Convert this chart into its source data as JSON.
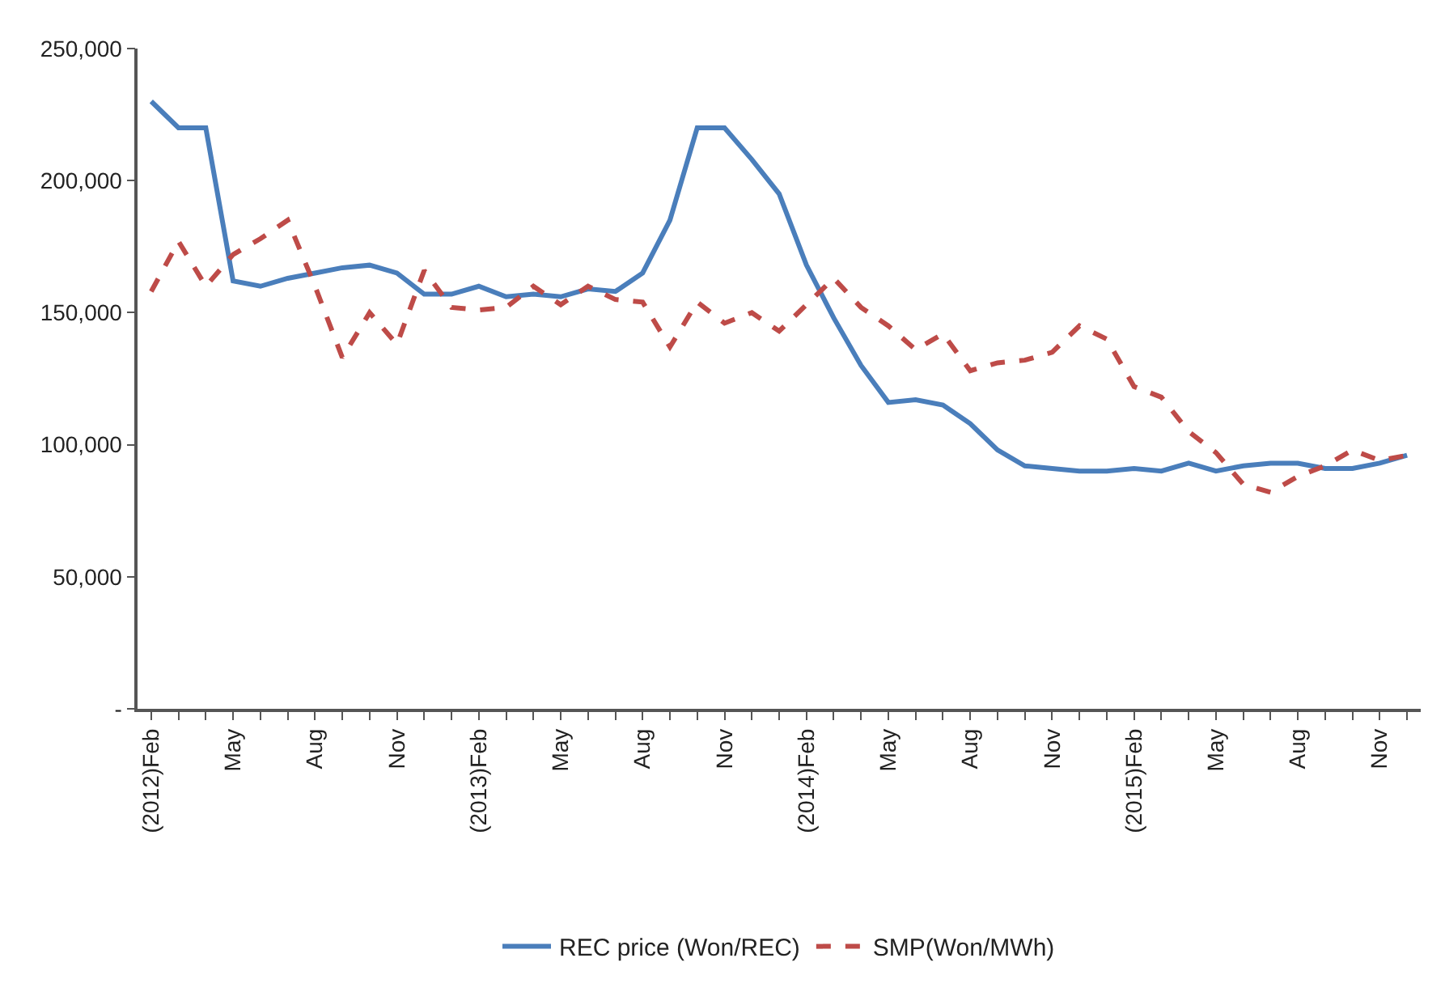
{
  "chart_data": {
    "type": "line",
    "categories": [
      "(2012)Feb",
      null,
      null,
      "May",
      null,
      null,
      "Aug",
      null,
      null,
      "Nov",
      null,
      null,
      "(2013)Feb",
      null,
      null,
      "May",
      null,
      null,
      "Aug",
      null,
      null,
      "Nov",
      null,
      null,
      "(2014)Feb",
      null,
      null,
      "May",
      null,
      null,
      "Aug",
      null,
      null,
      "Nov",
      null,
      null,
      "(2015)Feb",
      null,
      null,
      "May",
      null,
      null,
      "Aug",
      null,
      null,
      "Nov",
      null
    ],
    "series": [
      {
        "name": "REC price (Won/REC)",
        "color": "#4a7ebb",
        "line_style": "solid",
        "values": [
          230000,
          220000,
          220000,
          162000,
          160000,
          163000,
          165000,
          167000,
          168000,
          165000,
          157000,
          157000,
          160000,
          156000,
          157000,
          156000,
          159000,
          158000,
          165000,
          185000,
          220000,
          220000,
          208000,
          195000,
          168000,
          148000,
          130000,
          116000,
          117000,
          115000,
          108000,
          98000,
          92000,
          91000,
          90000,
          90000,
          91000,
          90000,
          93000,
          90000,
          92000,
          93000,
          93000,
          91000,
          91000,
          93000,
          96000
        ]
      },
      {
        "name": "SMP(Won/MWh)",
        "color": "#be4b48",
        "line_style": "dashed",
        "values": [
          158000,
          177000,
          160000,
          172000,
          178000,
          185000,
          160000,
          133000,
          150000,
          138000,
          166000,
          152000,
          151000,
          152000,
          160000,
          153000,
          160000,
          155000,
          154000,
          137000,
          154000,
          146000,
          150000,
          143000,
          153000,
          163000,
          152000,
          145000,
          136000,
          142000,
          128000,
          131000,
          132000,
          135000,
          145000,
          140000,
          122000,
          118000,
          105000,
          97000,
          85000,
          82000,
          88000,
          92000,
          98000,
          94000,
          96000
        ]
      }
    ],
    "ylim": [
      0,
      250000
    ],
    "yticks": [
      {
        "value": 0,
        "label": "-"
      },
      {
        "value": 50000,
        "label": "50,000"
      },
      {
        "value": 100000,
        "label": "100,000"
      },
      {
        "value": 150000,
        "label": "150,000"
      },
      {
        "value": 200000,
        "label": "200,000"
      },
      {
        "value": 250000,
        "label": "250,000"
      }
    ],
    "legend": "bottom",
    "marker": "none"
  }
}
